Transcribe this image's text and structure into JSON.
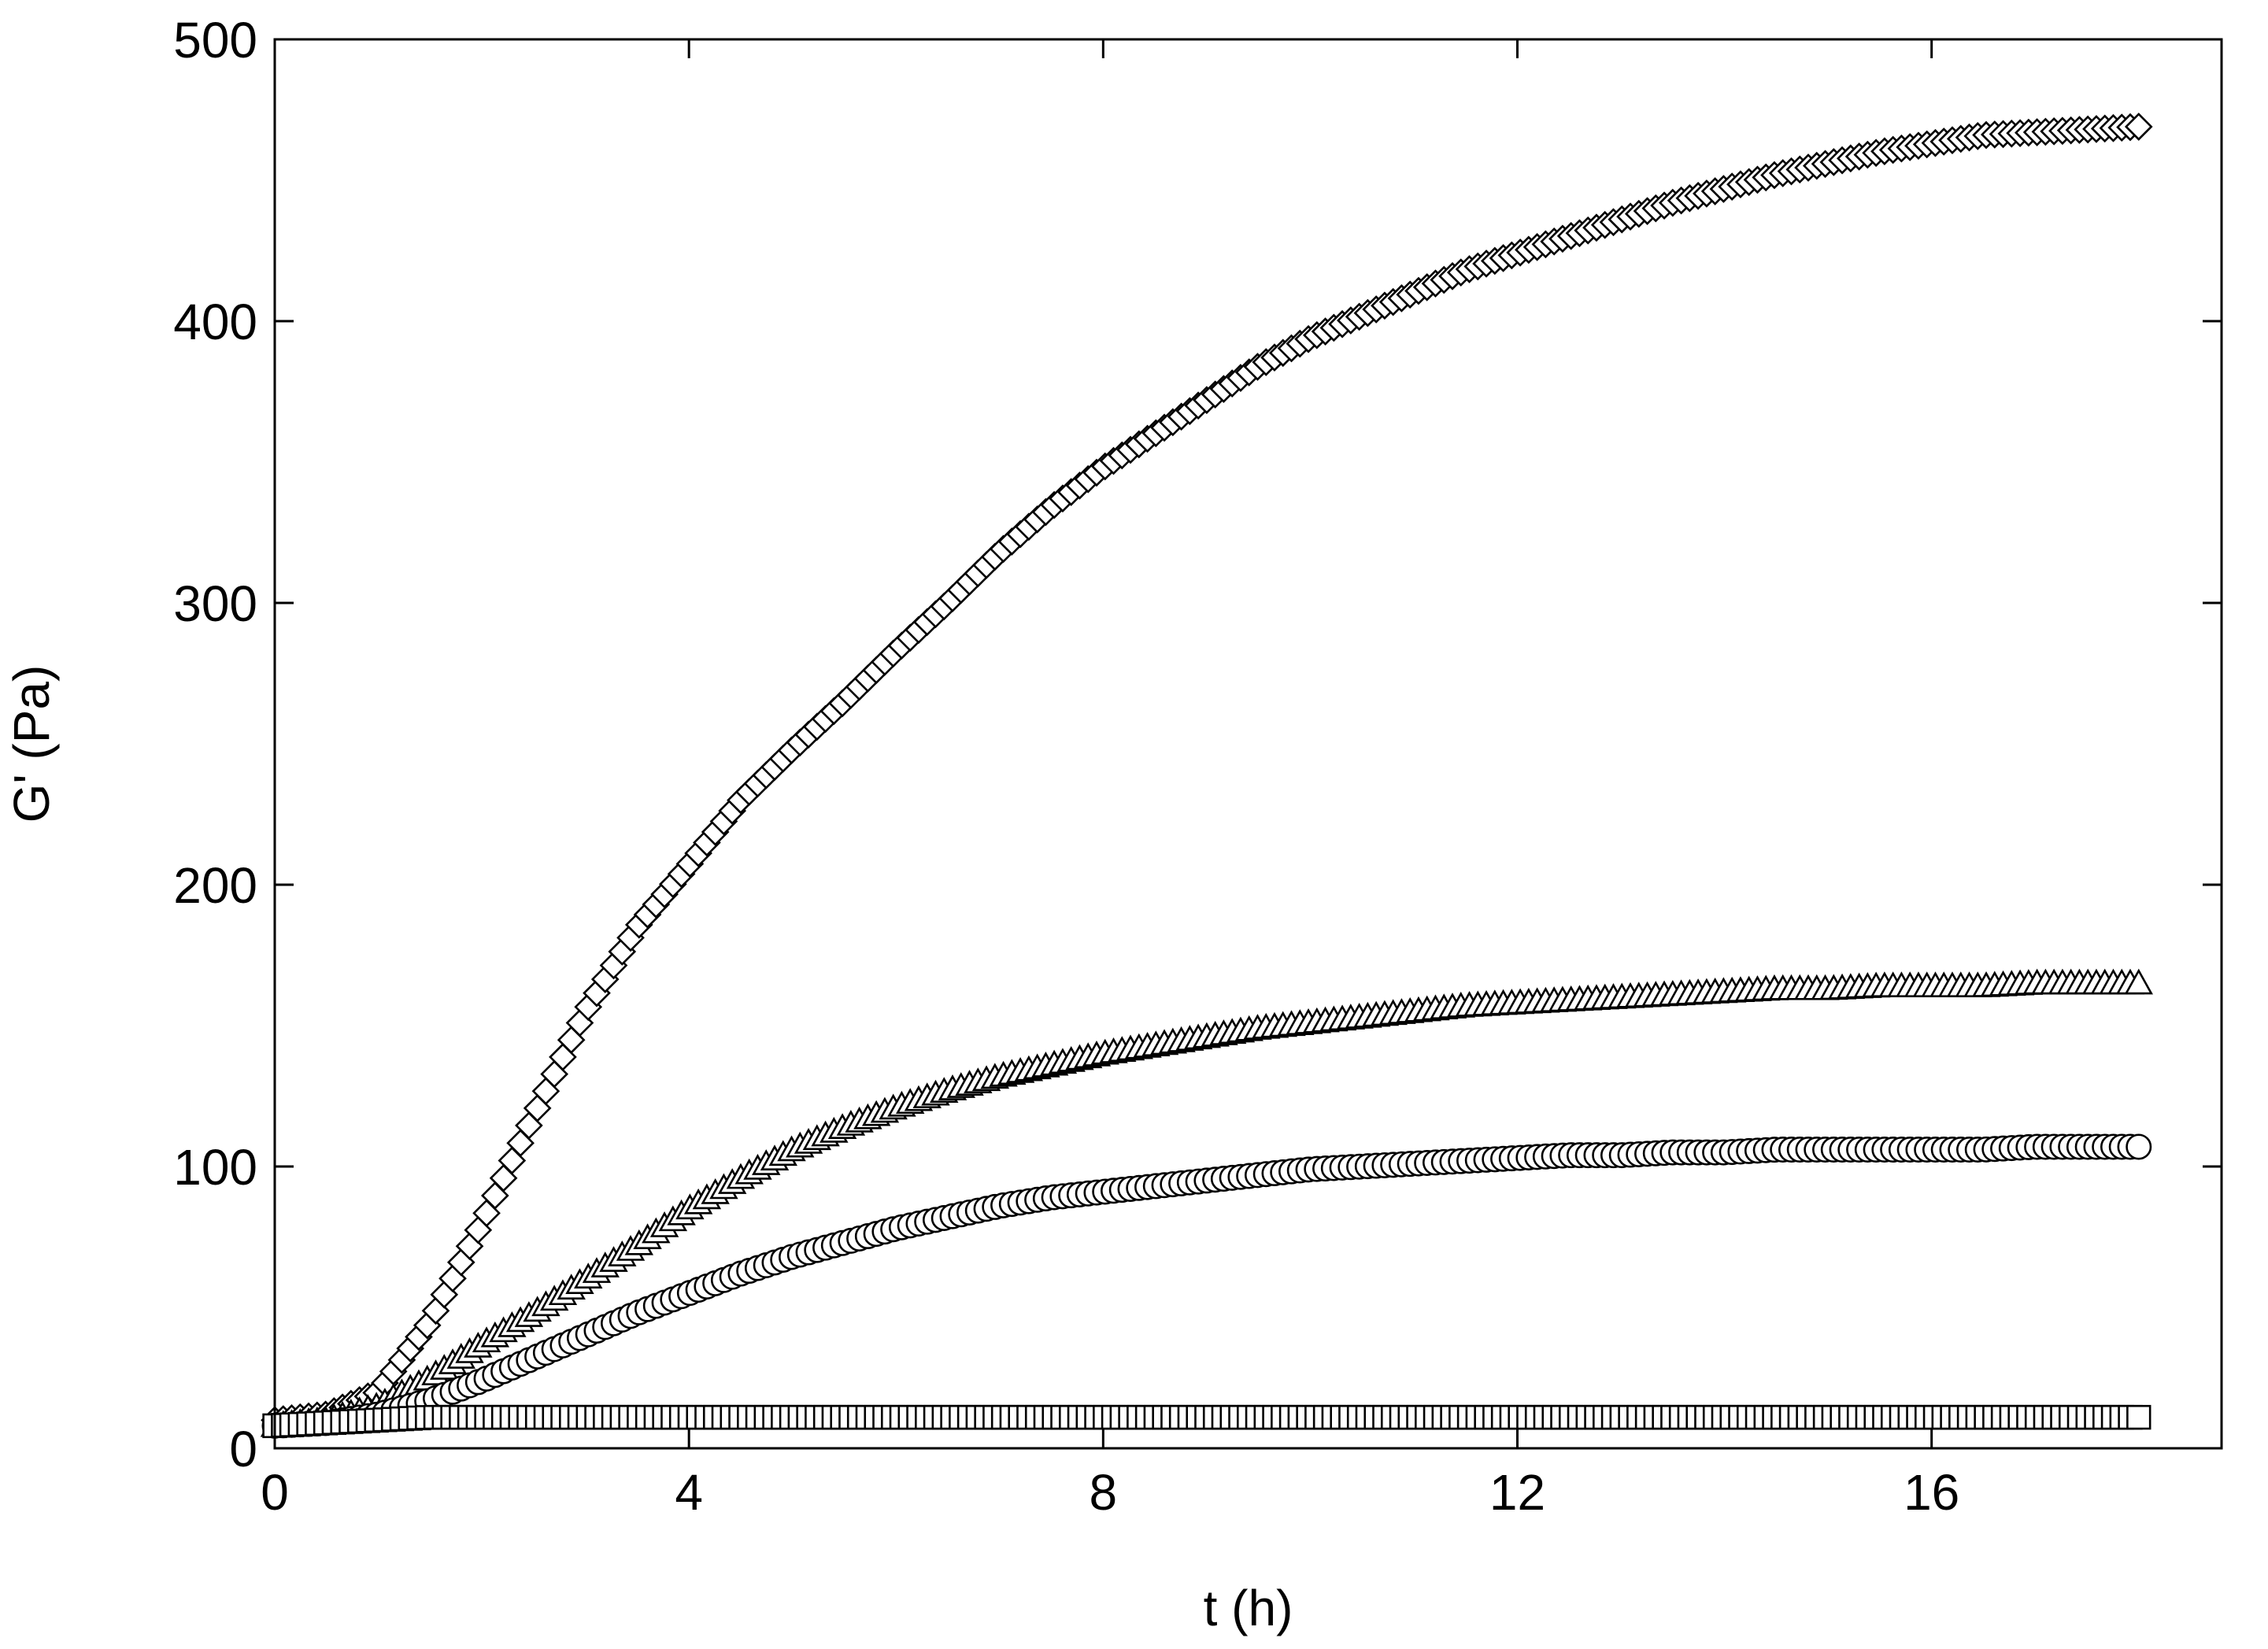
{
  "chart_data": {
    "type": "scatter",
    "title": "",
    "xlabel": "t (h)",
    "ylabel": "G' (Pa)",
    "xlim": [
      0,
      18.8
    ],
    "ylim": [
      0,
      500
    ],
    "xticks": [
      0,
      4,
      8,
      12,
      16
    ],
    "yticks": [
      0,
      100,
      200,
      300,
      400,
      500
    ],
    "xtick_labels": [
      "0",
      "4",
      "8",
      "12",
      "16"
    ],
    "ytick_labels": [
      "0",
      "100",
      "200",
      "300",
      "400",
      "500"
    ],
    "grid": false,
    "legend": "none",
    "series": [
      {
        "marker": "diamond",
        "x": [
          0,
          0.5,
          1,
          1.5,
          2,
          2.5,
          3,
          3.5,
          4,
          4.5,
          5,
          5.5,
          6,
          6.5,
          7,
          7.5,
          8,
          8.5,
          9,
          9.5,
          10,
          10.5,
          11,
          11.5,
          12,
          12.5,
          13,
          13.5,
          14,
          14.5,
          15,
          15.5,
          16,
          16.5,
          17,
          17.5,
          18
        ],
        "y": [
          10,
          12,
          20,
          45,
          80,
          118,
          155,
          185,
          207,
          230,
          248,
          265,
          283,
          300,
          318,
          334,
          348,
          360,
          372,
          384,
          394,
          402,
          410,
          418,
          424,
          430,
          436,
          442,
          447,
          452,
          456,
          460,
          463,
          466,
          467,
          468,
          469
        ]
      },
      {
        "marker": "triangle",
        "x": [
          0,
          0.5,
          1,
          1.5,
          2,
          2.5,
          3,
          3.5,
          4,
          4.5,
          5,
          5.5,
          6,
          6.5,
          7,
          7.5,
          8,
          8.5,
          9,
          9.5,
          10,
          10.5,
          11,
          11.5,
          12,
          12.5,
          13,
          13.5,
          14,
          14.5,
          15,
          15.5,
          16,
          16.5,
          17,
          17.5,
          18
        ],
        "y": [
          8,
          10,
          15,
          25,
          37,
          48,
          60,
          72,
          85,
          96,
          106,
          114,
          121,
          127,
          132,
          136,
          140,
          143,
          146,
          149,
          151,
          153,
          155,
          157,
          158,
          159,
          160,
          161,
          162,
          163,
          163,
          164,
          164,
          164,
          165,
          165,
          165
        ]
      },
      {
        "marker": "circle",
        "x": [
          0,
          0.5,
          1,
          1.5,
          2,
          2.5,
          3,
          3.5,
          4,
          4.5,
          5,
          5.5,
          6,
          6.5,
          7,
          7.5,
          8,
          8.5,
          9,
          9.5,
          10,
          10.5,
          11,
          11.5,
          12,
          12.5,
          13,
          13.5,
          14,
          14.5,
          15,
          15.5,
          16,
          16.5,
          17,
          17.5,
          18
        ],
        "y": [
          8,
          9,
          12,
          17,
          24,
          32,
          40,
          48,
          55,
          62,
          68,
          73,
          78,
          82,
          86,
          89,
          91,
          93,
          95,
          97,
          99,
          100,
          101,
          102,
          103,
          104,
          104,
          105,
          105,
          106,
          106,
          106,
          106,
          106,
          107,
          107,
          107
        ]
      },
      {
        "marker": "square",
        "x": [
          0,
          0.5,
          1,
          1.5,
          2,
          2.5,
          3,
          3.5,
          4,
          4.5,
          5,
          5.5,
          6,
          6.5,
          7,
          7.5,
          8,
          8.5,
          9,
          9.5,
          10,
          10.5,
          11,
          11.5,
          12,
          12.5,
          13,
          13.5,
          14,
          14.5,
          15,
          15.5,
          16,
          16.5,
          17,
          17.5,
          18
        ],
        "y": [
          8,
          9,
          10,
          11,
          11,
          11,
          11,
          11,
          11,
          11,
          11,
          11,
          11,
          11,
          11,
          11,
          11,
          11,
          11,
          11,
          11,
          11,
          11,
          11,
          11,
          11,
          11,
          11,
          11,
          11,
          11,
          11,
          11,
          11,
          11,
          11,
          11
        ]
      }
    ]
  }
}
